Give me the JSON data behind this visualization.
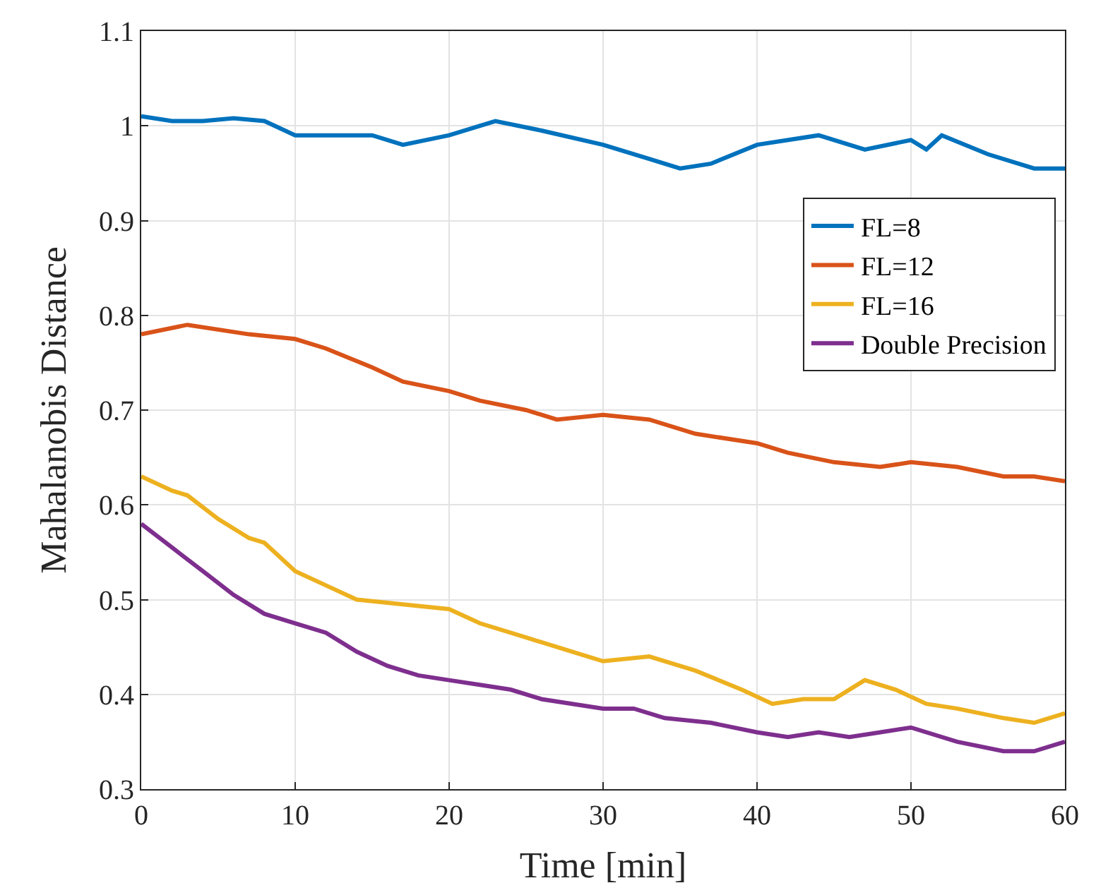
{
  "chart_data": {
    "type": "line",
    "xlabel": "Time [min]",
    "ylabel": "Mahalanobis Distance",
    "xlim": [
      0,
      60
    ],
    "xticks": [
      0,
      10,
      20,
      30,
      40,
      50,
      60
    ],
    "ylim": [
      0.3,
      1.1
    ],
    "yticks": [
      0.3,
      0.4,
      0.5,
      0.6,
      0.7,
      0.8,
      0.9,
      1,
      1.1
    ],
    "grid": true,
    "legend": "top right",
    "marker": "none",
    "line_style": "solid",
    "series": [
      {
        "name": "FL=8",
        "color": "#0072bd",
        "x": [
          0,
          2,
          4,
          6,
          8,
          10,
          12,
          15,
          17,
          20,
          23,
          26,
          30,
          33,
          35,
          37,
          40,
          44,
          47,
          50,
          51,
          52,
          55,
          58,
          60
        ],
        "values": [
          1.01,
          1.005,
          1.005,
          1.008,
          1.005,
          0.99,
          0.99,
          0.99,
          0.98,
          0.99,
          1.005,
          0.995,
          0.98,
          0.965,
          0.955,
          0.96,
          0.98,
          0.99,
          0.975,
          0.985,
          0.975,
          0.99,
          0.97,
          0.955,
          0.955
        ]
      },
      {
        "name": "FL=12",
        "color": "#d95319",
        "x": [
          0,
          3,
          7,
          10,
          12,
          15,
          17,
          20,
          22,
          25,
          27,
          30,
          33,
          36,
          40,
          42,
          45,
          48,
          50,
          53,
          56,
          58,
          60
        ],
        "values": [
          0.78,
          0.79,
          0.78,
          0.775,
          0.765,
          0.745,
          0.73,
          0.72,
          0.71,
          0.7,
          0.69,
          0.695,
          0.69,
          0.675,
          0.665,
          0.655,
          0.645,
          0.64,
          0.645,
          0.64,
          0.63,
          0.63,
          0.625
        ]
      },
      {
        "name": "FL=16",
        "color": "#edb120",
        "x": [
          0,
          2,
          3,
          5,
          7,
          8,
          10,
          12,
          14,
          17,
          20,
          22,
          25,
          28,
          30,
          33,
          36,
          39,
          41,
          43,
          45,
          47,
          49,
          51,
          53,
          56,
          58,
          60
        ],
        "values": [
          0.63,
          0.615,
          0.61,
          0.585,
          0.565,
          0.56,
          0.53,
          0.515,
          0.5,
          0.495,
          0.49,
          0.475,
          0.46,
          0.445,
          0.435,
          0.44,
          0.425,
          0.405,
          0.39,
          0.395,
          0.395,
          0.415,
          0.405,
          0.39,
          0.385,
          0.375,
          0.37,
          0.38
        ]
      },
      {
        "name": "Double Precision",
        "color": "#7e2f8e",
        "x": [
          0,
          2,
          4,
          6,
          8,
          10,
          12,
          14,
          16,
          18,
          20,
          22,
          24,
          26,
          28,
          30,
          32,
          34,
          37,
          40,
          42,
          44,
          46,
          48,
          50,
          53,
          56,
          58,
          60
        ],
        "values": [
          0.58,
          0.555,
          0.53,
          0.505,
          0.485,
          0.475,
          0.465,
          0.445,
          0.43,
          0.42,
          0.415,
          0.41,
          0.405,
          0.395,
          0.39,
          0.385,
          0.385,
          0.375,
          0.37,
          0.36,
          0.355,
          0.36,
          0.355,
          0.36,
          0.365,
          0.35,
          0.34,
          0.34,
          0.35
        ]
      }
    ]
  }
}
